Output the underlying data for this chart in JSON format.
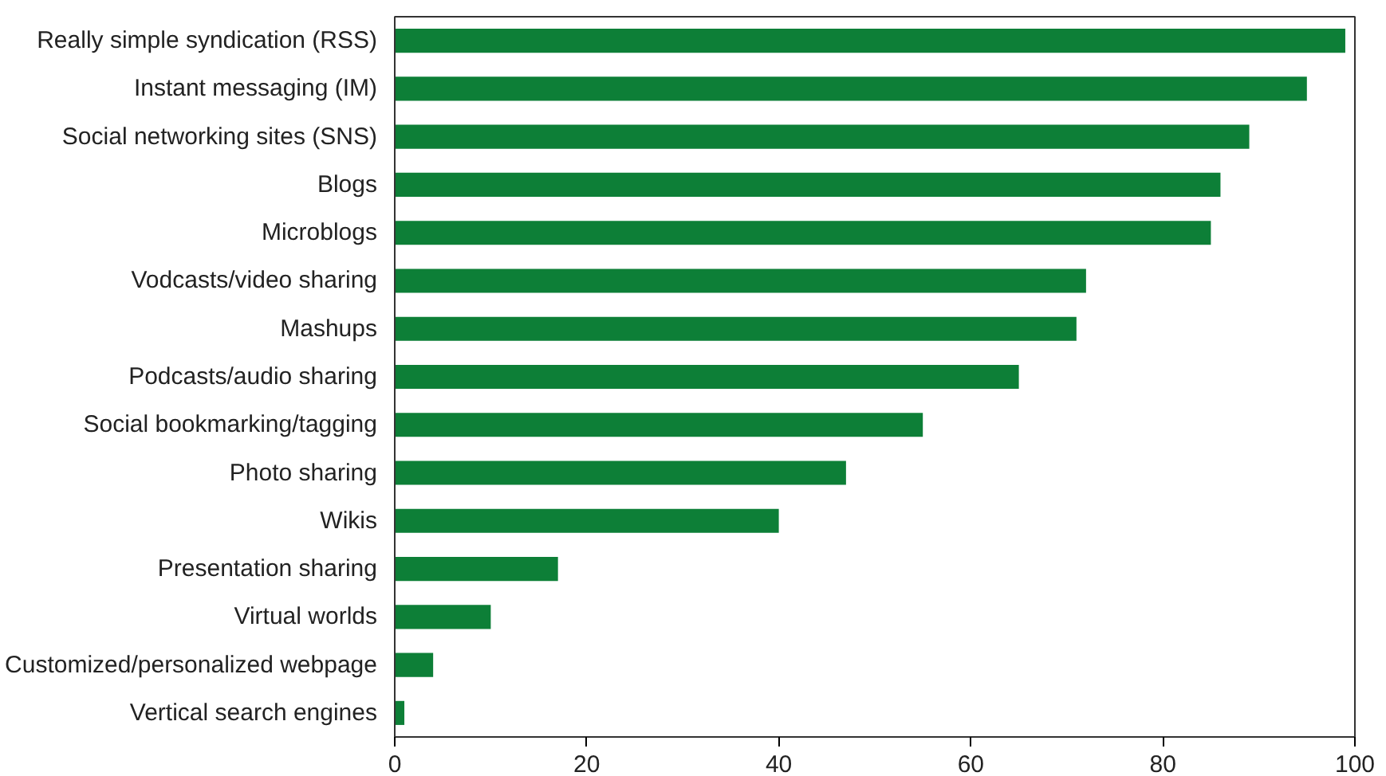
{
  "chart_data": {
    "type": "bar",
    "orientation": "horizontal",
    "categories": [
      "Really simple syndication (RSS)",
      "Instant messaging (IM)",
      "Social networking sites (SNS)",
      "Blogs",
      "Microblogs",
      "Vodcasts/video sharing",
      "Mashups",
      "Podcasts/audio sharing",
      "Social bookmarking/tagging",
      "Photo sharing",
      "Wikis",
      "Presentation sharing",
      "Virtual worlds",
      "Customized/personalized webpage",
      "Vertical search engines"
    ],
    "values": [
      99,
      95,
      89,
      86,
      85,
      72,
      71,
      65,
      55,
      47,
      40,
      17,
      10,
      4,
      1
    ],
    "color": "#0d7f37",
    "xlim": [
      0,
      100
    ],
    "xticks": [
      0,
      20,
      40,
      60,
      80,
      100
    ],
    "grid": false
  }
}
